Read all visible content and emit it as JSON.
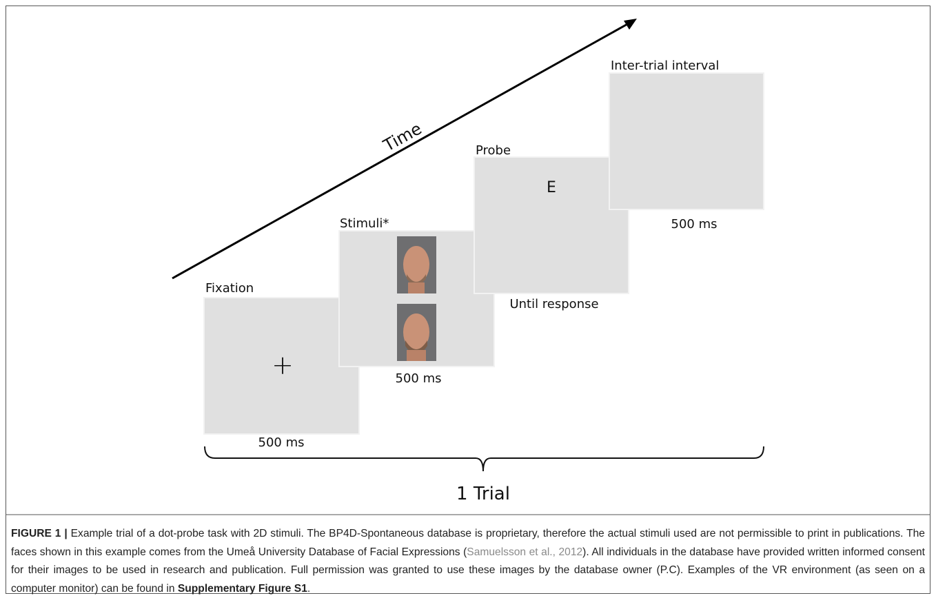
{
  "figure": {
    "time_label": "Time",
    "trial_label": "1 Trial",
    "panels": [
      {
        "label": "Fixation",
        "symbol": "+",
        "duration": "500 ms"
      },
      {
        "label": "Stimuli*",
        "duration": "500 ms"
      },
      {
        "label": "Probe",
        "symbol": "E",
        "duration": "Until response"
      },
      {
        "label": "Inter-trial interval",
        "duration": "500 ms"
      }
    ]
  },
  "caption": {
    "label": "FIGURE 1 |",
    "text_1": "Example trial of a dot-probe task with 2D stimuli. The BP4D-Spontaneous database is proprietary, therefore the actual stimuli used are not permissible to print in publications. The faces shown in this example comes from the Umeå University Database of Facial Expressions (",
    "citation": "Samuelsson et al., 2012",
    "text_2": "). All individuals in the database have provided written informed consent for their images to be used in research and publication. Full permission was granted to use these images by the database owner (P.C). Examples of the VR environment (as seen on a computer monitor) can be found in ",
    "reference": "Supplementary Figure S1",
    "text_3": "."
  }
}
